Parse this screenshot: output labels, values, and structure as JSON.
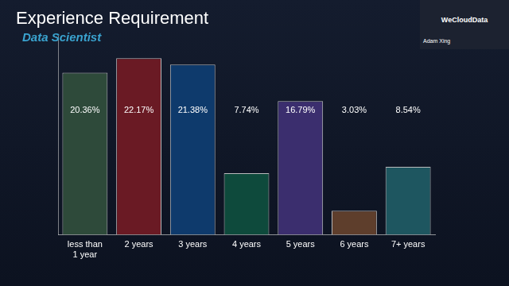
{
  "chart_data": {
    "type": "bar",
    "title": "Experience Requirement",
    "subtitle": "Data Scientist",
    "annotations": [
      "WeCloudData",
      "Adam Xing"
    ],
    "categories": [
      "less than 1 year",
      "2 years",
      "3 years",
      "4 years",
      "5 years",
      "6 years",
      "7+ years"
    ],
    "values": [
      20.36,
      22.17,
      21.38,
      7.74,
      16.79,
      3.03,
      8.54
    ],
    "value_labels": [
      "20.36%",
      "22.17%",
      "21.38%",
      "7.74%",
      "16.79%",
      "3.03%",
      "8.54%"
    ],
    "colors": [
      "#2e4a3a",
      "#6a1a24",
      "#0e3a6c",
      "#0e4a3c",
      "#3b2e6e",
      "#5e3e2c",
      "#1e5660"
    ],
    "ylim": [
      0,
      25
    ],
    "grid": false,
    "data_labels": true,
    "tick_labels": "x"
  }
}
